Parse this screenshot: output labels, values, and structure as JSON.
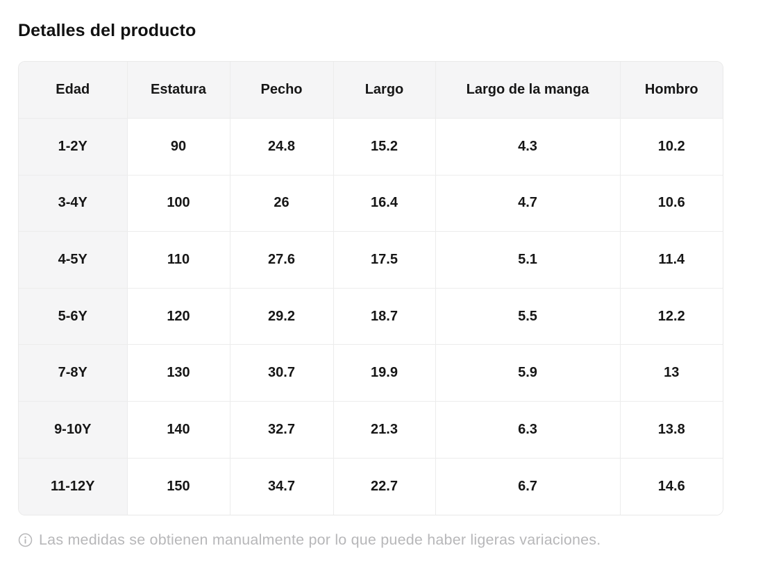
{
  "page": {
    "title": "Detalles del producto"
  },
  "colors": {
    "header_bg": "#f5f5f6",
    "border": "#ececec",
    "text": "#161616",
    "footnote_text": "#b7b7b9"
  },
  "table": {
    "columns": [
      "Edad",
      "Estatura",
      "Pecho",
      "Largo",
      "Largo de la manga",
      "Hombro"
    ],
    "rows": [
      [
        "1-2Y",
        "90",
        "24.8",
        "15.2",
        "4.3",
        "10.2"
      ],
      [
        "3-4Y",
        "100",
        "26",
        "16.4",
        "4.7",
        "10.6"
      ],
      [
        "4-5Y",
        "110",
        "27.6",
        "17.5",
        "5.1",
        "11.4"
      ],
      [
        "5-6Y",
        "120",
        "29.2",
        "18.7",
        "5.5",
        "12.2"
      ],
      [
        "7-8Y",
        "130",
        "30.7",
        "19.9",
        "5.9",
        "13"
      ],
      [
        "9-10Y",
        "140",
        "32.7",
        "21.3",
        "6.3",
        "13.8"
      ],
      [
        "11-12Y",
        "150",
        "34.7",
        "22.7",
        "6.7",
        "14.6"
      ]
    ]
  },
  "footnote": {
    "icon": "info-icon",
    "text": "Las medidas se obtienen manualmente por lo que puede haber ligeras variaciones."
  }
}
